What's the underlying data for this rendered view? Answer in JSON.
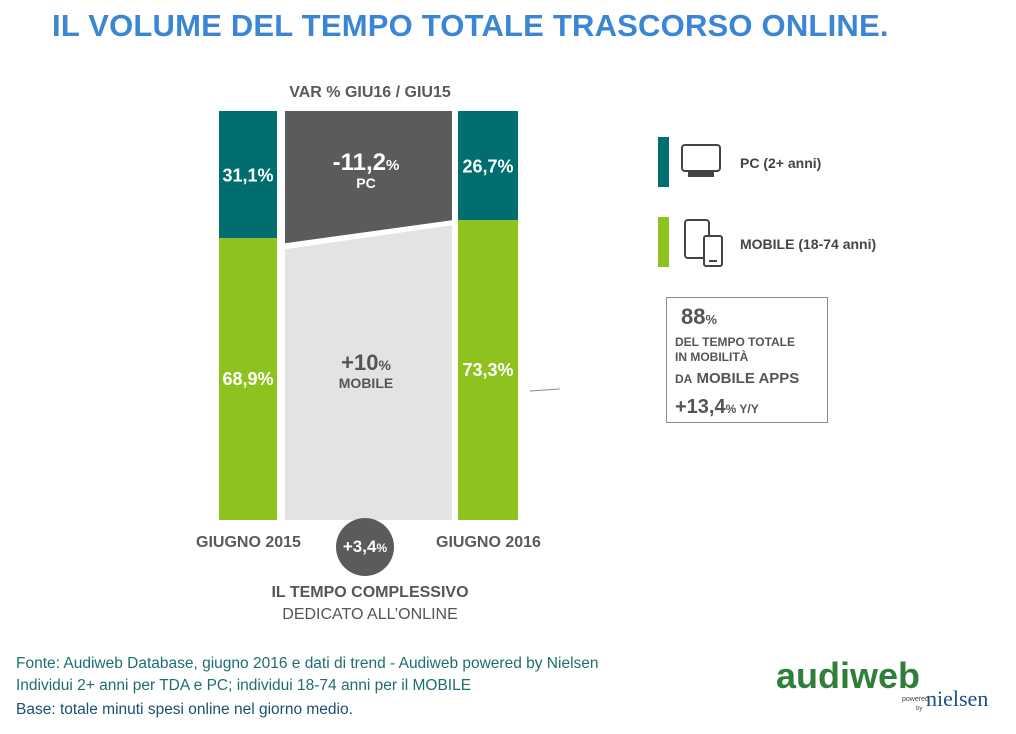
{
  "title": "IL VOLUME DEL TEMPO TOTALE TRASCORSO ONLINE.",
  "colors": {
    "pc": "#006e6e",
    "mobile": "#8ec21f",
    "pc_change": "#5b5b5b",
    "mobile_change": "#e3e3e3",
    "title": "#3a86d4"
  },
  "chart_data": {
    "type": "bar",
    "stacked": true,
    "percent_stacked": true,
    "categories": [
      "GIUGNO 2015",
      "GIUGNO 2016"
    ],
    "series": [
      {
        "name": "PC (2+ anni)",
        "values": [
          31.1,
          26.7
        ],
        "labels": [
          "31,1%",
          "26,7%"
        ]
      },
      {
        "name": "MOBILE (18-74 anni)",
        "values": [
          68.9,
          73.3
        ],
        "labels": [
          "68,9%",
          "73,3%"
        ]
      }
    ],
    "ylim": [
      0,
      100
    ],
    "change_header": "VAR % GIU16 / GIU15",
    "changes": {
      "pc": {
        "value": -11.2,
        "num": "-11,2",
        "unit": "%",
        "label": "PC"
      },
      "mobile": {
        "value": 10,
        "num": "+10",
        "unit": "%",
        "label": "MOBILE"
      }
    },
    "total_change": {
      "value": 3.4,
      "num": "+3,4",
      "unit": "%",
      "caption1": "IL TEMPO COMPLESSIVO",
      "caption2": "DEDICATO ALL’ONLINE"
    }
  },
  "legend": {
    "pc": {
      "label": "PC (2+ anni)",
      "icon": "monitor-icon"
    },
    "mobile": {
      "label": "MOBILE (18-74 anni)",
      "icon": "tablet-phone-icon"
    }
  },
  "callout": {
    "num": "88",
    "unit": "%",
    "line1": "DEL TEMPO TOTALE",
    "line2": "IN MOBILITÀ",
    "apps_prefix": "DA",
    "apps": "MOBILE APPS",
    "growth_num": "+13,4",
    "growth_unit": "% Y/Y"
  },
  "footer": {
    "line1": "Fonte: Audiweb Database, giugno 2016 e dati di trend - Audiweb powered by Nielsen",
    "line2": "Individui 2+ anni per TDA e PC; individui 18-74 anni per il MOBILE",
    "line3": "Base: totale minuti spesi online nel giorno medio."
  },
  "logo": {
    "brand": "audiweb",
    "powered": "powered",
    "by": "by",
    "partner": "nielsen"
  }
}
